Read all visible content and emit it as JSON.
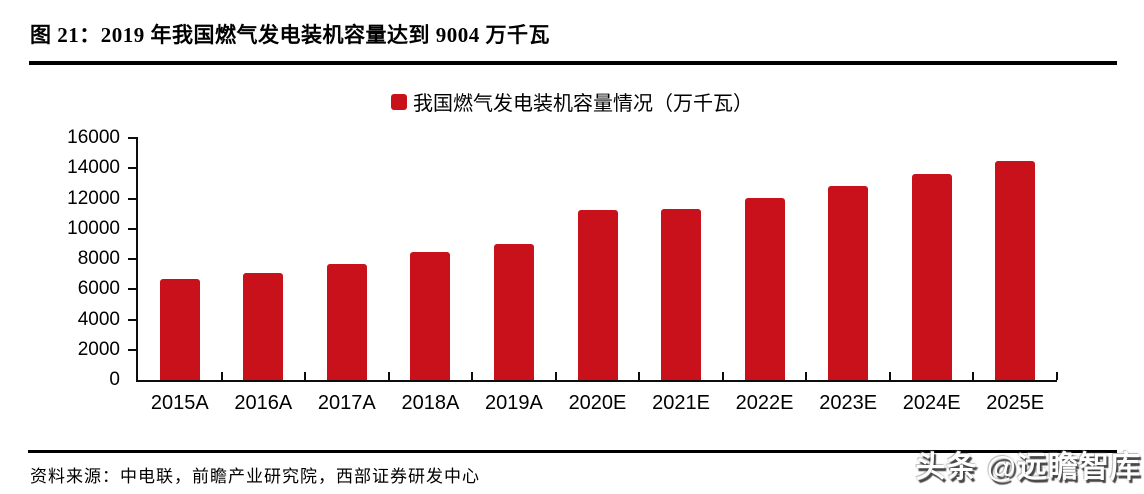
{
  "figure": {
    "title": "图 21：2019 年我国燃气发电装机容量达到 9004 万千瓦",
    "source": "资料来源：中电联，前瞻产业研究院，西部证券研发中心",
    "watermark": "头条 @远瞻智库"
  },
  "colors": {
    "bar": "#C8111B",
    "rule": "#000000",
    "axis": "#0d0d0d",
    "text": "#000000",
    "watermark_text": "#ffffff"
  },
  "chart_data": {
    "type": "bar",
    "title": "我国燃气发电装机容量情况（万千瓦）",
    "categories": [
      "2015A",
      "2016A",
      "2017A",
      "2018A",
      "2019A",
      "2020E",
      "2021E",
      "2022E",
      "2023E",
      "2024E",
      "2025E"
    ],
    "values": [
      6650,
      7100,
      7700,
      8450,
      9004,
      11250,
      11300,
      12000,
      12850,
      13650,
      14450
    ],
    "xlabel": "",
    "ylabel": "",
    "ylim": [
      0,
      16000
    ],
    "ytick_step": 2000,
    "grid": false,
    "legend_position": "top-center",
    "bar_color": "#C8111B"
  }
}
